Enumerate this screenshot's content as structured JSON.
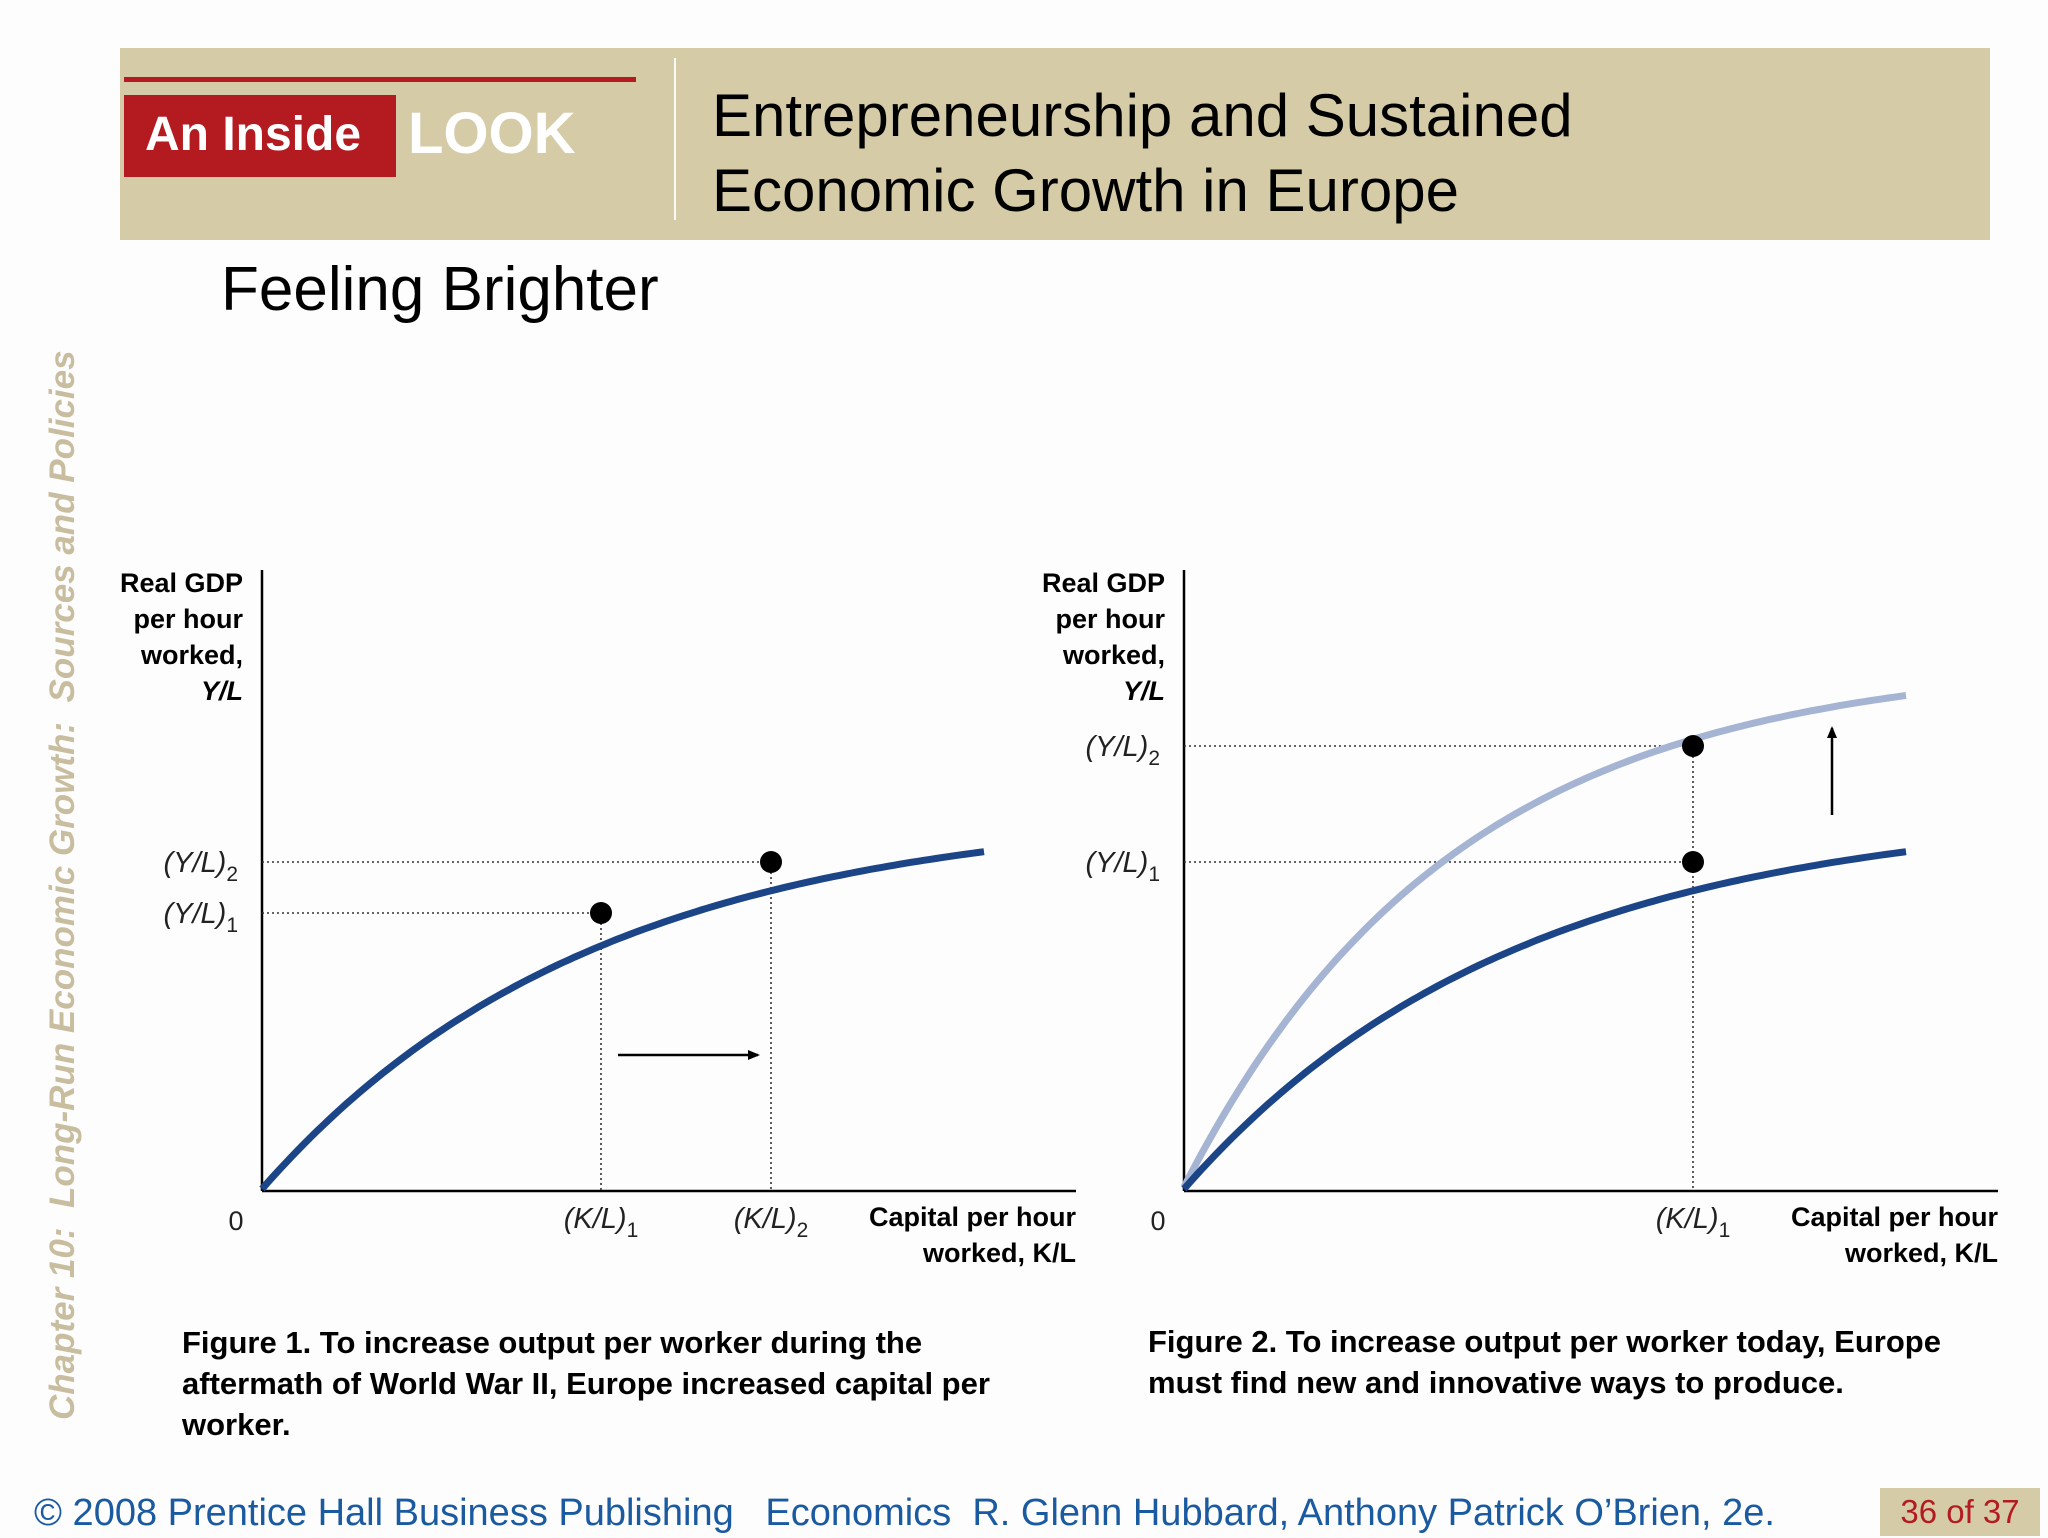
{
  "side_label": "Chapter 10:  Long-Run Economic Growth:  Sources and Policies",
  "header": {
    "badge_inside": "An Inside",
    "badge_look": "LOOK",
    "title_line1": "Entrepreneurship and Sustained",
    "title_line2": "Economic Growth in Europe"
  },
  "subtitle": "Feeling Brighter",
  "chart_data": [
    {
      "type": "line",
      "ylabel": [
        "Real GDP",
        "per hour",
        "worked,",
        "Y/L"
      ],
      "xlabel": [
        "Capital per hour",
        "worked, K/L"
      ],
      "origin_label": "0",
      "x_ticks": [
        {
          "base": "(K/L)",
          "sub": "1"
        },
        {
          "base": "(K/L)",
          "sub": "2"
        }
      ],
      "y_ticks": [
        {
          "base": "(Y/L)",
          "sub": "2"
        },
        {
          "base": "(Y/L)",
          "sub": "1"
        }
      ],
      "series": [
        {
          "color": "#1c4587"
        }
      ],
      "points": [
        {
          "x": "(K/L)1",
          "y": "(Y/L)1"
        },
        {
          "x": "(K/L)2",
          "y": "(Y/L)2"
        }
      ],
      "arrow": "right",
      "caption": "Figure 1. To increase output per worker during the aftermath of World War II, Europe increased capital per worker."
    },
    {
      "type": "line",
      "ylabel": [
        "Real GDP",
        "per hour",
        "worked,",
        "Y/L"
      ],
      "xlabel": [
        "Capital per hour",
        "worked, K/L"
      ],
      "origin_label": "0",
      "x_ticks": [
        {
          "base": "(K/L)",
          "sub": "1"
        }
      ],
      "y_ticks": [
        {
          "base": "(Y/L)",
          "sub": "2"
        },
        {
          "base": "(Y/L)",
          "sub": "1"
        }
      ],
      "series": [
        {
          "color": "#a4b4d2"
        },
        {
          "color": "#1c4587"
        }
      ],
      "points": [
        {
          "x": "(K/L)1",
          "y": "(Y/L)2"
        },
        {
          "x": "(K/L)1",
          "y": "(Y/L)1"
        }
      ],
      "arrow": "up",
      "caption": "Figure 2. To increase output per worker today, Europe must find new and innovative ways to produce."
    }
  ],
  "footer": {
    "copyright": "© 2008 Prentice Hall Business Publishing   Economics  R. Glenn Hubbard, Anthony Patrick O’Brien, 2e.",
    "page": "36 of 37"
  },
  "colors": {
    "accent_red": "#b31b21",
    "banner_tan": "#d5cba7",
    "curve_dark": "#1c4587",
    "curve_light": "#a4b4d2",
    "footer_blue": "#1a5aa1"
  }
}
